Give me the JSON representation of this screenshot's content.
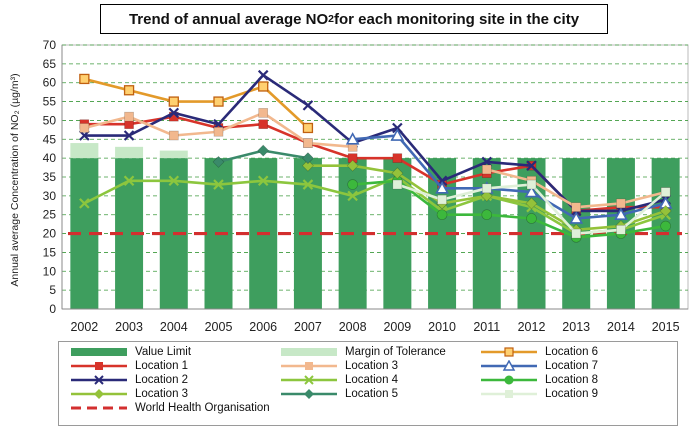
{
  "chart_data": {
    "type": "bar+line",
    "title": "Trend of annual average NO",
    "title_sub": "2",
    "title_rest": " for each monitoring site in the city",
    "ylabel": "Annual average Concentration of NO₂ (µg/m³)",
    "xlabel": "",
    "ylim": [
      0,
      70
    ],
    "yticks": [
      0,
      5,
      10,
      15,
      20,
      25,
      30,
      35,
      40,
      45,
      50,
      55,
      60,
      65,
      70
    ],
    "grid": "horizontal dashed",
    "legend_position": "bottom",
    "categories": [
      "2002",
      "2003",
      "2004",
      "2005",
      "2006",
      "2007",
      "2008",
      "2009",
      "2010",
      "2011",
      "2012",
      "2013",
      "2014",
      "2015"
    ],
    "bars": [
      {
        "name": "Value Limit",
        "color": "#3e9e5e",
        "values": [
          40,
          40,
          40,
          40,
          40,
          40,
          40,
          40,
          40,
          40,
          40,
          40,
          40,
          40
        ]
      },
      {
        "name": "Margin of Tolerance",
        "color": "#c7e8c7",
        "values": [
          4,
          3,
          2,
          0,
          0,
          0,
          0,
          0,
          0,
          0,
          0,
          0,
          0,
          0
        ]
      }
    ],
    "series": [
      {
        "name": "Location 6",
        "color": "#e39a2a",
        "marker": "square-hollow",
        "values": [
          61,
          58,
          55,
          55,
          59,
          48,
          null,
          null,
          null,
          null,
          null,
          null,
          null,
          null
        ]
      },
      {
        "name": "Location 1",
        "color": "#d7332a",
        "marker": "square",
        "values": [
          49,
          49,
          51,
          48,
          49,
          44,
          40,
          40,
          33,
          36,
          38,
          26,
          27,
          27
        ]
      },
      {
        "name": "Location 2",
        "color": "#2a2a78",
        "marker": "x",
        "values": [
          46,
          46,
          52,
          49,
          62,
          54,
          44,
          48,
          34,
          39,
          38,
          26,
          26,
          29
        ]
      },
      {
        "name": "Location 3",
        "color": "#f2b88e",
        "marker": "square",
        "values": [
          48,
          51,
          46,
          47,
          52,
          44,
          43,
          null,
          null,
          37,
          34,
          27,
          28,
          31
        ]
      },
      {
        "name": "Location 4",
        "color": "#8cc63e",
        "marker": "x",
        "values": [
          28,
          34,
          34,
          33,
          34,
          33,
          30,
          35,
          26,
          30,
          27,
          20,
          21,
          25
        ]
      },
      {
        "name": "Location 7",
        "color": "#4169b4",
        "marker": "triangle-hollow",
        "values": [
          null,
          null,
          null,
          null,
          null,
          null,
          45,
          46,
          32,
          32,
          31,
          24,
          25,
          28
        ]
      },
      {
        "name": "Location 8",
        "color": "#3cb83c",
        "marker": "circle",
        "values": [
          null,
          null,
          null,
          null,
          null,
          null,
          33,
          34,
          25,
          25,
          24,
          19,
          20,
          22
        ]
      },
      {
        "name": "Location 3",
        "color": "#94c23a",
        "marker": "diamond",
        "values": [
          null,
          null,
          null,
          null,
          null,
          38,
          38,
          36,
          28,
          30,
          28,
          21,
          22,
          26
        ]
      },
      {
        "name": "Location 5",
        "color": "#3a8a6a",
        "marker": "diamond",
        "values": [
          null,
          null,
          null,
          39,
          42,
          40,
          null,
          null,
          null,
          null,
          null,
          null,
          null,
          null
        ]
      },
      {
        "name": "Location 9",
        "color": "#dff0d8",
        "marker": "square",
        "values": [
          null,
          null,
          null,
          null,
          null,
          null,
          null,
          33,
          29,
          32,
          33,
          20,
          21,
          31
        ]
      }
    ],
    "reference_line": {
      "name": "World Health Organisation",
      "color": "#d32f2f",
      "value": 20
    }
  },
  "legend": [
    {
      "name": "Value Limit",
      "kind": "bar",
      "color": "#3e9e5e"
    },
    {
      "name": "Margin of Tolerance",
      "kind": "bar",
      "color": "#c7e8c7"
    },
    {
      "name": "Location 6",
      "kind": "line",
      "color": "#e39a2a",
      "marker": "square-hollow"
    },
    {
      "name": "Location 1",
      "kind": "line",
      "color": "#d7332a",
      "marker": "square"
    },
    {
      "name": "Location 3",
      "kind": "line",
      "color": "#f2b88e",
      "marker": "square"
    },
    {
      "name": "Location 7",
      "kind": "line",
      "color": "#4169b4",
      "marker": "triangle-hollow"
    },
    {
      "name": "Location 2",
      "kind": "line",
      "color": "#2a2a78",
      "marker": "x"
    },
    {
      "name": "Location 4",
      "kind": "line",
      "color": "#8cc63e",
      "marker": "x"
    },
    {
      "name": "Location 8",
      "kind": "line",
      "color": "#3cb83c",
      "marker": "circle"
    },
    {
      "name": "Location 3",
      "kind": "line",
      "color": "#94c23a",
      "marker": "diamond"
    },
    {
      "name": "Location 5",
      "kind": "line",
      "color": "#3a8a6a",
      "marker": "diamond"
    },
    {
      "name": "Location 9",
      "kind": "line",
      "color": "#dff0d8",
      "marker": "square"
    },
    {
      "name": "World Health Organisation",
      "kind": "dash",
      "color": "#d32f2f"
    }
  ]
}
